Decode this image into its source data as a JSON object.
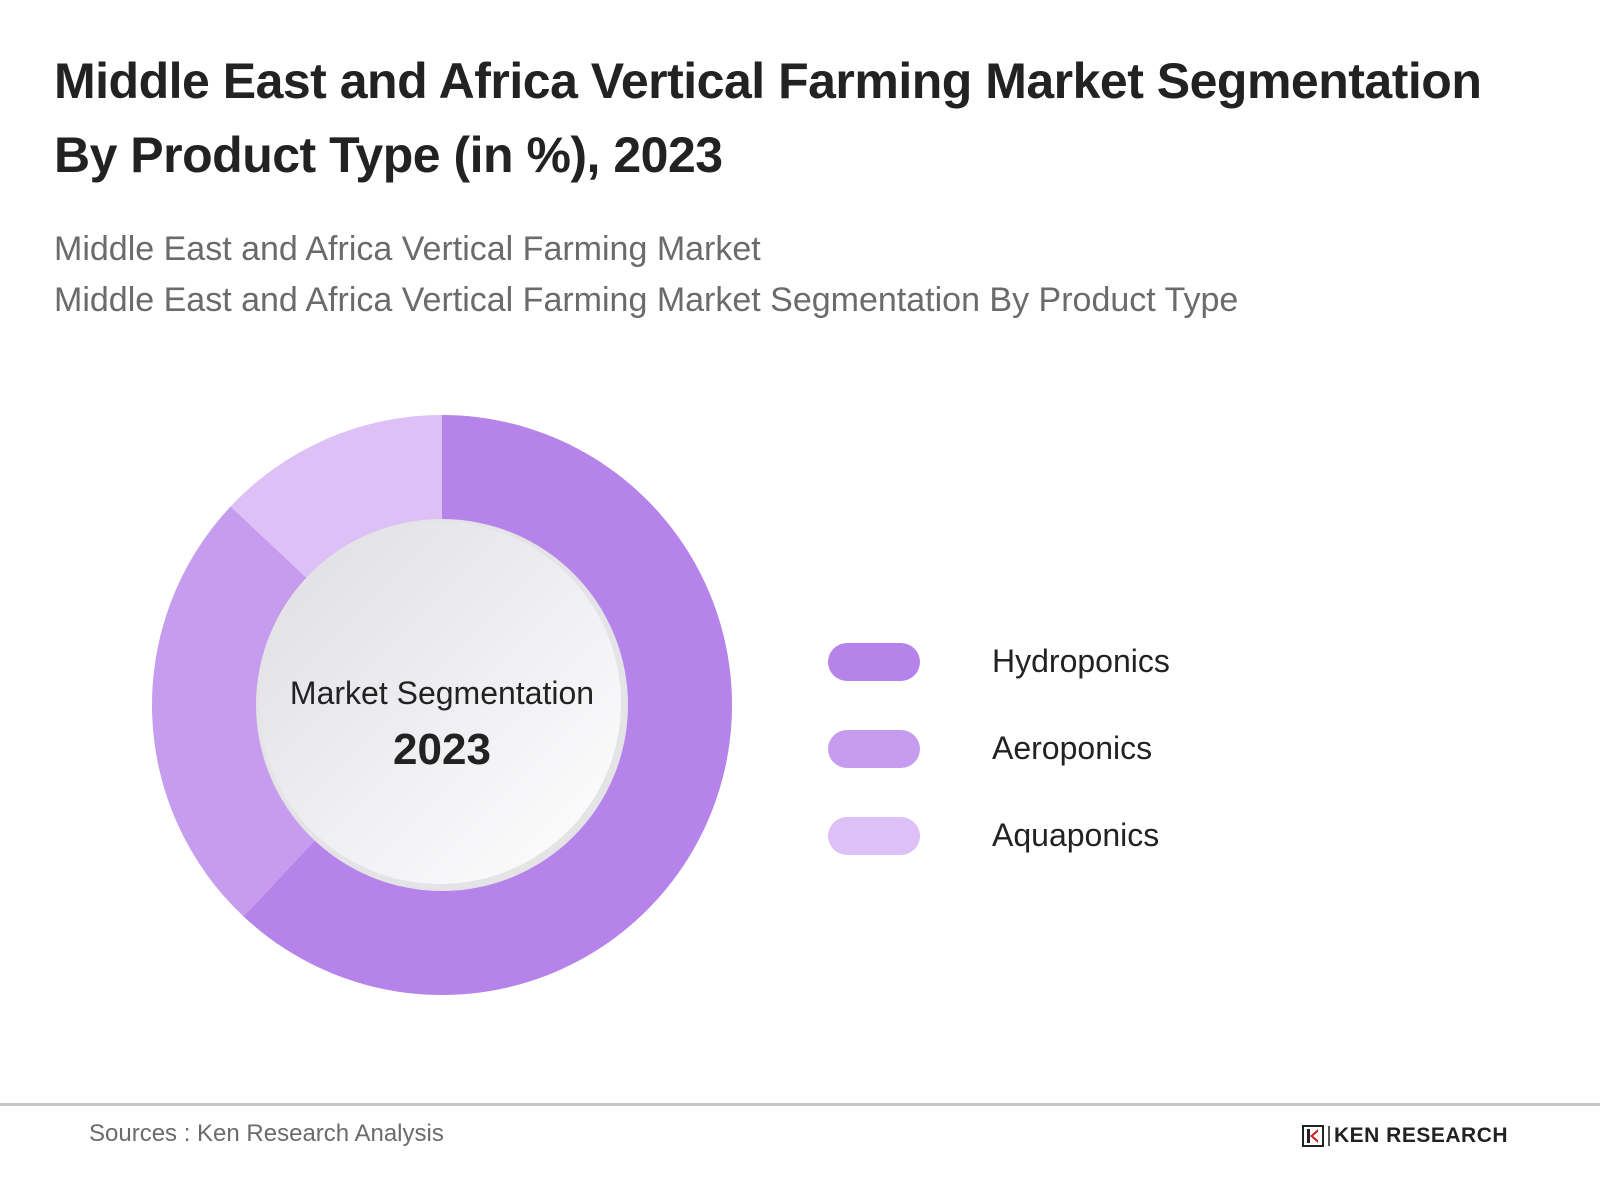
{
  "header": {
    "title_line1": "Middle East and Africa Vertical Farming Market Segmentation",
    "title_line2": "By Product Type (in %), 2023",
    "subtitle_line1": "Middle East and Africa Vertical Farming Market",
    "subtitle_line2": "Middle East and Africa Vertical Farming Market Segmentation By Product Type"
  },
  "center": {
    "label": "Market Segmentation",
    "year": "2023"
  },
  "legend": [
    {
      "label": "Hydroponics",
      "color": "#b583ea"
    },
    {
      "label": "Aeroponics",
      "color": "#c69cee"
    },
    {
      "label": "Aquaponics",
      "color": "#dcc0f6"
    }
  ],
  "footer": {
    "sources": "Sources : Ken Research Analysis",
    "logo_text": "KEN RESEARCH"
  },
  "chart_data": {
    "type": "pie",
    "subtype": "donut",
    "title": "Middle East and Africa Vertical Farming Market Segmentation By Product Type (in %), 2023",
    "categories": [
      "Hydroponics",
      "Aeroponics",
      "Aquaponics"
    ],
    "values": [
      62,
      25,
      13
    ],
    "colors": [
      "#b583ea",
      "#c69cee",
      "#dcc0f6"
    ],
    "center_text": [
      "Market Segmentation",
      "2023"
    ],
    "legend_position": "right",
    "units": "%"
  }
}
